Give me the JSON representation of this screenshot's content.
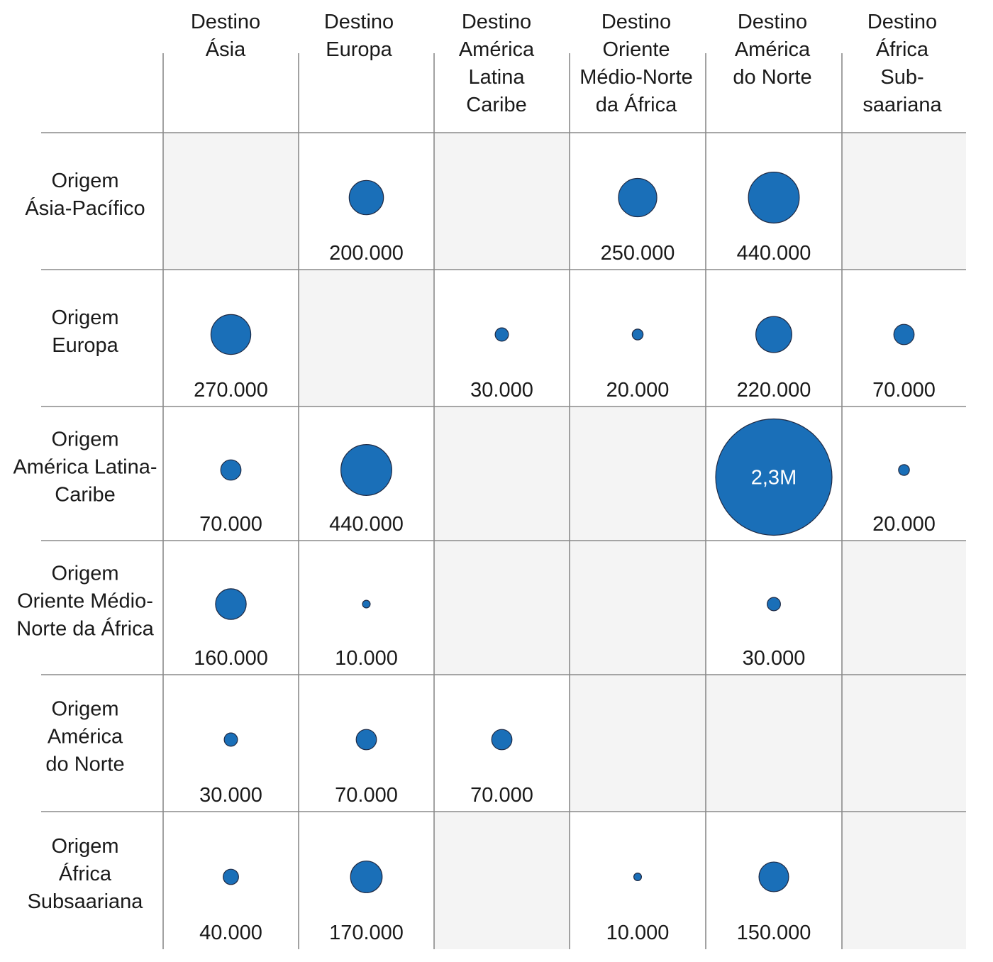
{
  "chart_data": {
    "type": "bubble-matrix",
    "title": "",
    "bubble_color": "#1a6fb8",
    "shade_color": "#f4f4f4",
    "columns": [
      [
        "Destino",
        "Ásia"
      ],
      [
        "Destino",
        "Europa"
      ],
      [
        "Destino",
        "América",
        "Latina",
        "Caribe"
      ],
      [
        "Destino",
        "Oriente",
        "Médio-Norte",
        "da África"
      ],
      [
        "Destino",
        "América",
        "do Norte"
      ],
      [
        "Destino",
        "África",
        "Sub-",
        "saariana"
      ]
    ],
    "rows": [
      {
        "label": [
          "Origem",
          "Ásia-Pacífico"
        ],
        "cells": [
          {
            "shaded": true
          },
          {
            "value": 200000,
            "label": "200.000"
          },
          {
            "shaded": true
          },
          {
            "value": 250000,
            "label": "250.000"
          },
          {
            "value": 440000,
            "label": "440.000"
          },
          {
            "shaded": true
          }
        ]
      },
      {
        "label": [
          "Origem",
          "Europa"
        ],
        "cells": [
          {
            "value": 270000,
            "label": "270.000"
          },
          {
            "shaded": true
          },
          {
            "value": 30000,
            "label": "30.000"
          },
          {
            "value": 20000,
            "label": "20.000"
          },
          {
            "value": 220000,
            "label": "220.000"
          },
          {
            "value": 70000,
            "label": "70.000"
          }
        ]
      },
      {
        "label": [
          "Origem",
          "América Latina-",
          "Caribe"
        ],
        "cells": [
          {
            "value": 70000,
            "label": "70.000"
          },
          {
            "value": 440000,
            "label": "440.000"
          },
          {
            "shaded": true
          },
          {
            "shaded": true
          },
          {
            "value": 2300000,
            "label": "2,3M",
            "inside": true
          },
          {
            "value": 20000,
            "label": "20.000"
          }
        ]
      },
      {
        "label": [
          "Origem",
          "Oriente Médio-",
          "Norte da África"
        ],
        "cells": [
          {
            "value": 160000,
            "label": "160.000"
          },
          {
            "value": 10000,
            "label": "10.000"
          },
          {
            "shaded": true
          },
          {
            "shaded": true
          },
          {
            "value": 30000,
            "label": "30.000"
          },
          {
            "shaded": true
          }
        ]
      },
      {
        "label": [
          "Origem",
          "América",
          "do Norte"
        ],
        "cells": [
          {
            "value": 30000,
            "label": "30.000"
          },
          {
            "value": 70000,
            "label": "70.000"
          },
          {
            "value": 70000,
            "label": "70.000"
          },
          {
            "shaded": true
          },
          {
            "shaded": true
          },
          {
            "shaded": true
          }
        ]
      },
      {
        "label": [
          "Origem",
          "África",
          "Subsaariana"
        ],
        "cells": [
          {
            "value": 40000,
            "label": "40.000"
          },
          {
            "value": 170000,
            "label": "170.000"
          },
          {
            "shaded": true
          },
          {
            "value": 10000,
            "label": "10.000"
          },
          {
            "value": 150000,
            "label": "150.000"
          },
          {
            "shaded": true
          }
        ]
      }
    ]
  }
}
